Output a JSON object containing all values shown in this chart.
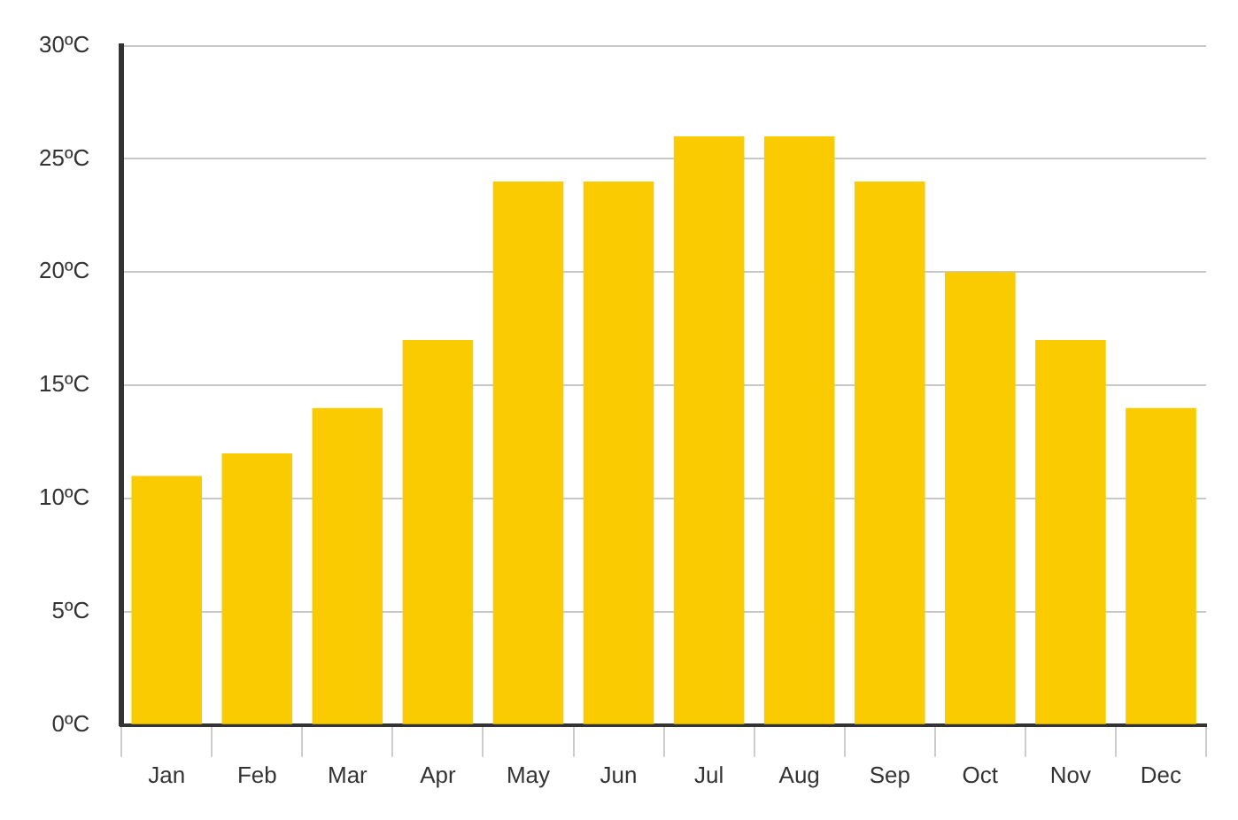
{
  "chart_data": {
    "type": "bar",
    "categories": [
      "Jan",
      "Feb",
      "Mar",
      "Apr",
      "May",
      "Jun",
      "Jul",
      "Aug",
      "Sep",
      "Oct",
      "Nov",
      "Dec"
    ],
    "values": [
      11,
      12,
      14,
      17,
      24,
      24,
      26,
      26,
      24,
      20,
      17,
      14
    ],
    "color": "#f9cb00",
    "ylim": [
      0,
      30
    ],
    "yticks": [
      {
        "value": 0,
        "label": "0ºC"
      },
      {
        "value": 5,
        "label": "5ºC"
      },
      {
        "value": 10,
        "label": "10ºC"
      },
      {
        "value": 15,
        "label": "15ºC"
      },
      {
        "value": 20,
        "label": "20ºC"
      },
      {
        "value": 25,
        "label": "25ºC"
      },
      {
        "value": 30,
        "label": "30ºC"
      }
    ],
    "grid": "y"
  }
}
